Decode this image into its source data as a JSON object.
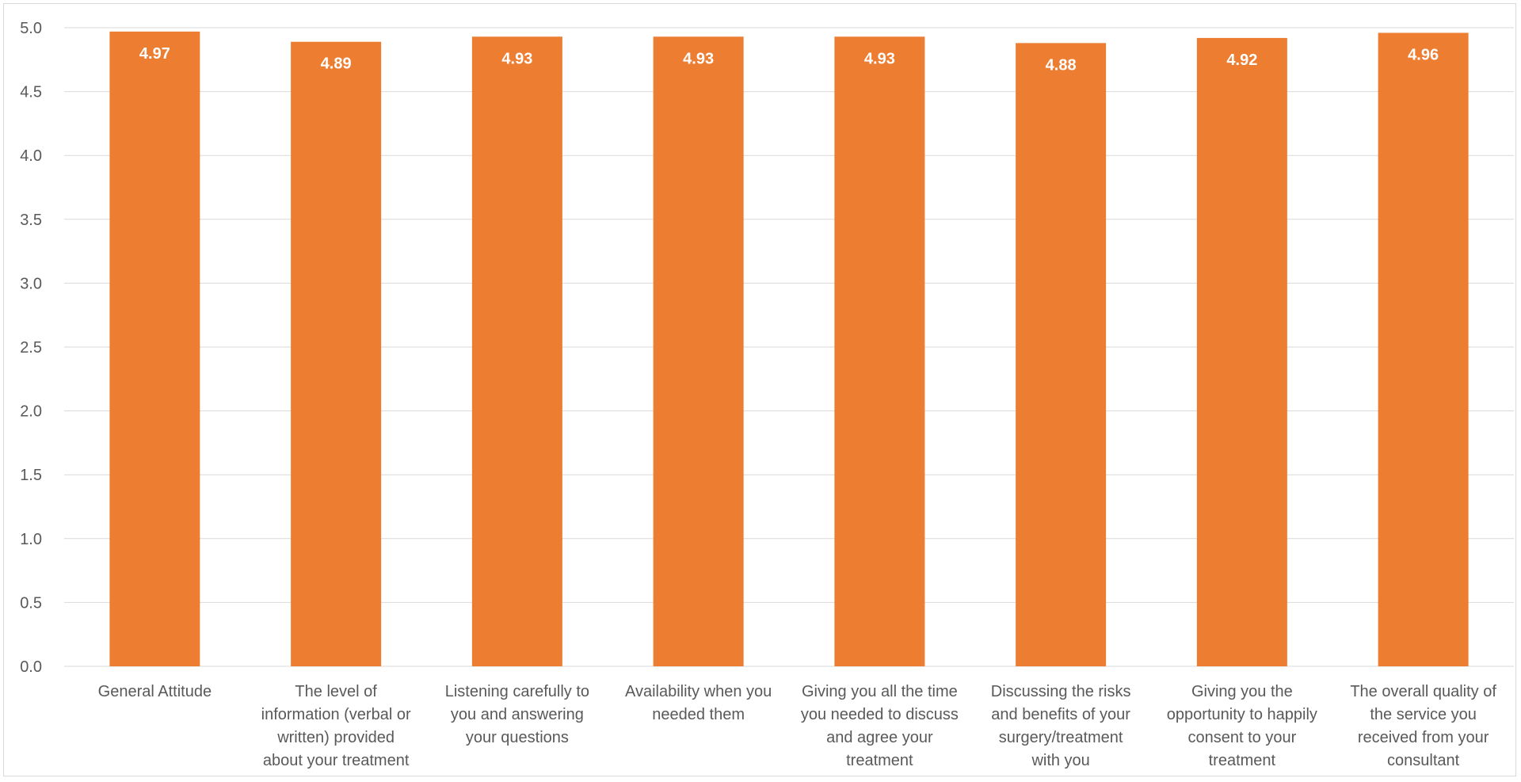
{
  "chart_data": {
    "type": "bar",
    "categories": [
      [
        "General Attitude"
      ],
      [
        "The level of",
        "information (verbal or",
        "written) provided",
        "about your treatment"
      ],
      [
        "Listening carefully to",
        "you and answering",
        "your questions"
      ],
      [
        "Availability when you",
        "needed them"
      ],
      [
        "Giving you all the time",
        "you needed to discuss",
        "and agree your",
        "treatment"
      ],
      [
        "Discussing the risks",
        "and benefits of your",
        "surgery/treatment",
        "with you"
      ],
      [
        "Giving you the",
        "opportunity to happily",
        "consent to your",
        "treatment"
      ],
      [
        "The overall quality of",
        "the service you",
        "received from your",
        "consultant"
      ]
    ],
    "values": [
      4.97,
      4.89,
      4.93,
      4.93,
      4.93,
      4.88,
      4.92,
      4.96
    ],
    "data_labels": [
      "4.97",
      "4.89",
      "4.93",
      "4.93",
      "4.93",
      "4.88",
      "4.92",
      "4.96"
    ],
    "title": "",
    "xlabel": "",
    "ylabel": "",
    "ylim": [
      0,
      5
    ],
    "yticks": [
      "0.0",
      "0.5",
      "1.0",
      "1.5",
      "2.0",
      "2.5",
      "3.0",
      "3.5",
      "4.0",
      "4.5",
      "5.0"
    ],
    "grid": true,
    "legend": "none",
    "bar_color": "#ED7D31",
    "grid_color": "#d9d9d9",
    "label_color": "#595959"
  }
}
